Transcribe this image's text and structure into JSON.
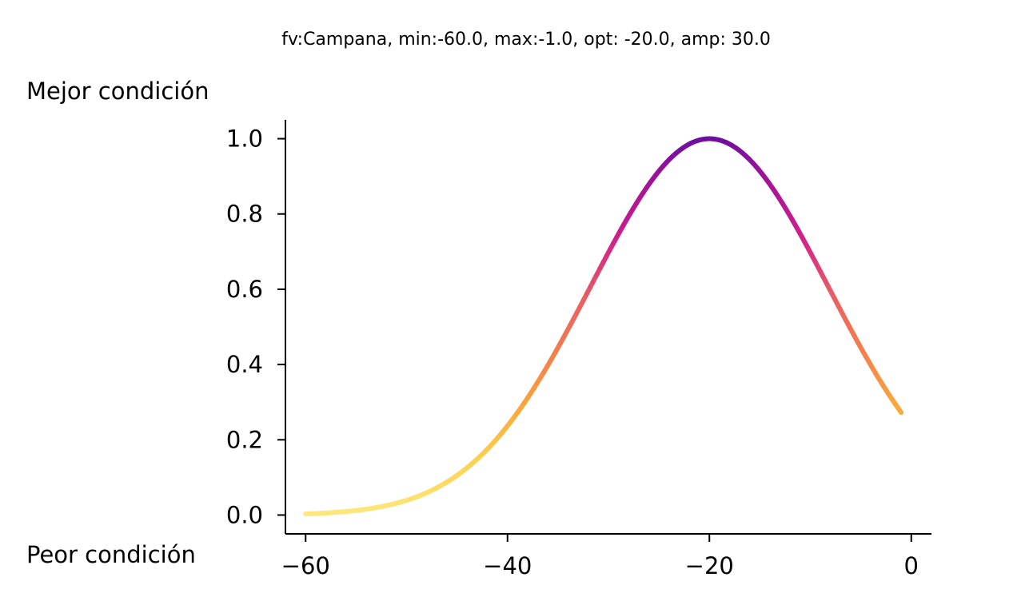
{
  "chart_data": {
    "type": "line",
    "title": "fv:Campana, min:-60.0, max:-1.0, opt: -20.0, amp: 30.0",
    "xlabel": "",
    "ylabel": "",
    "top_label": "Mejor condición",
    "bottom_label": "Peor condición",
    "function": "bell",
    "min": -60.0,
    "max": -1.0,
    "opt": -20.0,
    "amp": 30.0,
    "xlim": [
      -62.0,
      2.0
    ],
    "ylim": [
      -0.05,
      1.05
    ],
    "x_ticks": [
      -60,
      -40,
      -20,
      0
    ],
    "x_tick_labels": [
      "−60",
      "−40",
      "−20",
      "0"
    ],
    "y_ticks": [
      0.0,
      0.2,
      0.4,
      0.6,
      0.8,
      1.0
    ],
    "y_tick_labels": [
      "0.0",
      "0.2",
      "0.4",
      "0.6",
      "0.8",
      "1.0"
    ],
    "grid": false,
    "legend": "none",
    "colormap": "plasma",
    "colormap_range": [
      "#6a00a8",
      "#b12a90",
      "#cc4778",
      "#e16462",
      "#f2844b",
      "#fca636",
      "#fcce25",
      "#fde27a"
    ],
    "x": [
      -60,
      -55,
      -50,
      -45,
      -40,
      -35,
      -30,
      -25,
      -20,
      -15,
      -10,
      -5,
      -1
    ],
    "y": [
      0.0,
      0.02,
      0.06,
      0.14,
      0.28,
      0.48,
      0.72,
      0.92,
      1.0,
      0.92,
      0.72,
      0.48,
      0.32
    ]
  }
}
